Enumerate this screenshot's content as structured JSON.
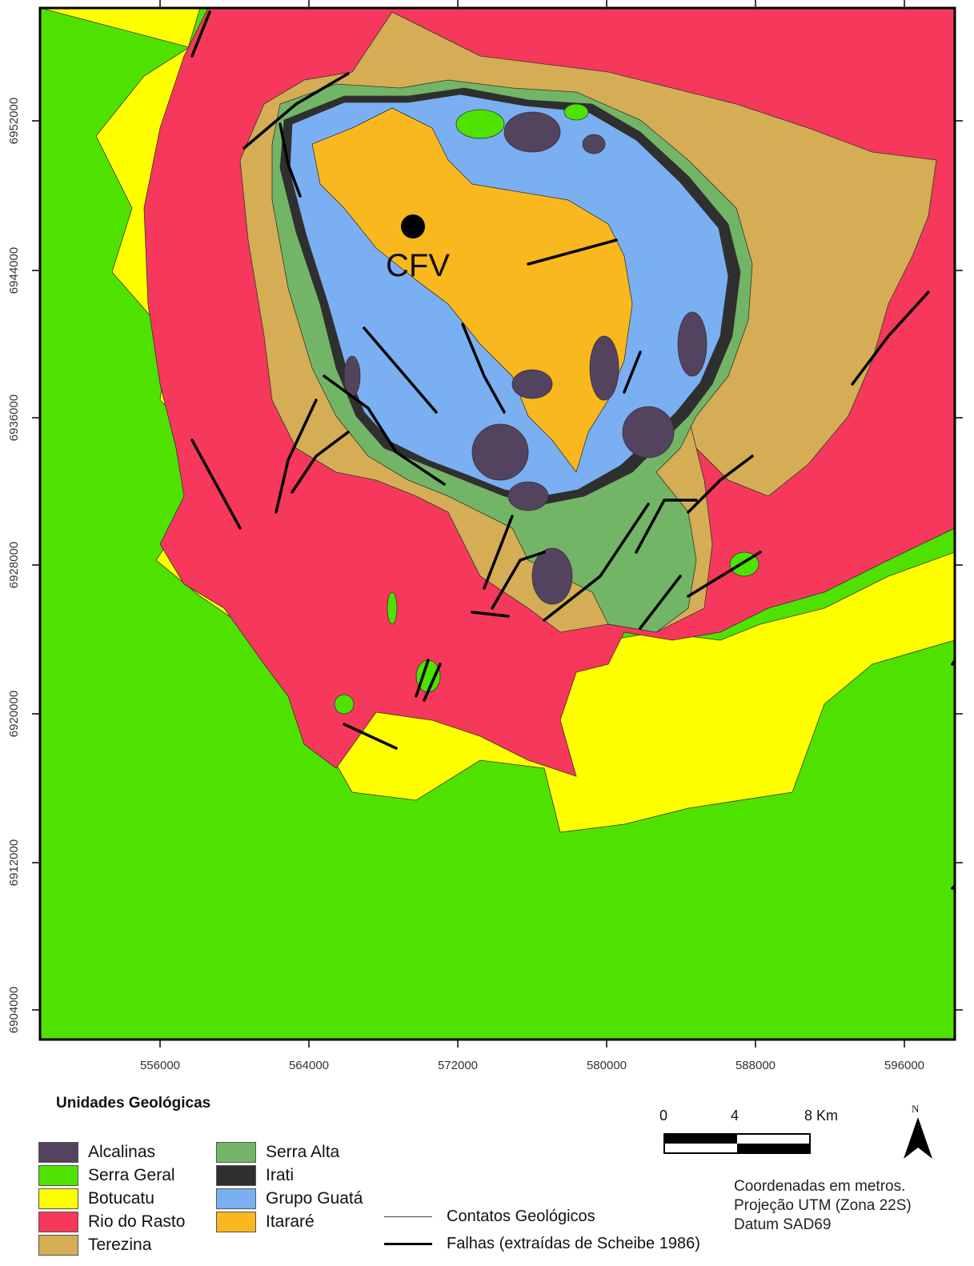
{
  "units": {
    "alcalinas": {
      "label": "Alcalinas",
      "color": "#54435f"
    },
    "serra_geral": {
      "label": "Serra Geral",
      "color": "#4fe200"
    },
    "botucatu": {
      "label": "Botucatu",
      "color": "#ffff00"
    },
    "rio_do_rasto": {
      "label": "Rio do Rasto",
      "color": "#f5385b"
    },
    "terezina": {
      "label": "Terezina",
      "color": "#d4ad55"
    },
    "serra_alta": {
      "label": "Serra Alta",
      "color": "#73b566"
    },
    "irati": {
      "label": "Irati",
      "color": "#2f2f2f"
    },
    "grupo_guata": {
      "label": "Grupo Guatá",
      "color": "#7ab0f2"
    },
    "itarare": {
      "label": "Itararé",
      "color": "#f9b81e"
    }
  },
  "legend": {
    "title": "Unidades Geológicas",
    "contacts": "Contatos Geológicos",
    "faults": "Falhas (extraídas de Scheibe 1986)"
  },
  "axes": {
    "x_ticks": [
      "556000",
      "564000",
      "572000",
      "580000",
      "588000",
      "596000"
    ],
    "y_ticks": [
      "6952000",
      "6944000",
      "6936000",
      "6928000",
      "6920000",
      "6912000",
      "6904000"
    ]
  },
  "marker": {
    "label": "CFV"
  },
  "scale_bar": {
    "labels": [
      "0",
      "4",
      "8 Km"
    ]
  },
  "north_arrow": {
    "label": "N"
  },
  "notes": [
    "Coordenadas em metros.",
    "Projeção UTM (Zona 22S)",
    "Datum SAD69"
  ]
}
